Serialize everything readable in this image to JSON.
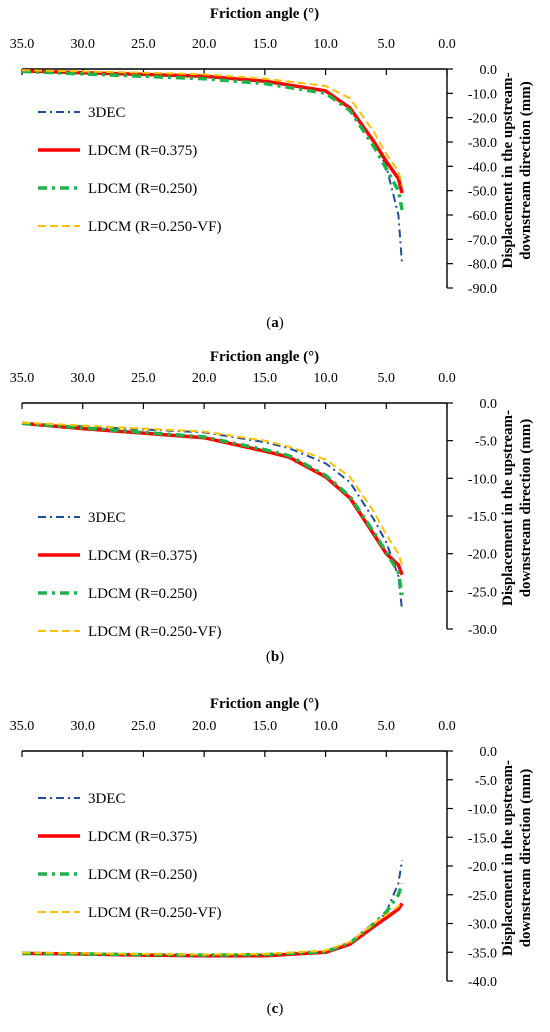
{
  "series_styles": [
    {
      "name": "3DEC",
      "color": "#1f4e9c",
      "dash": "8,4,2,4",
      "width": 2
    },
    {
      "name": "LDCM (R=0.375)",
      "color": "#ff0000",
      "dash": "",
      "width": 3.5
    },
    {
      "name": "LDCM (R=0.250)",
      "color": "#1db34a",
      "dash": "9,5,3,5",
      "width": 3.5
    },
    {
      "name": "LDCM (R=0.250-VF)",
      "color": "#ffc000",
      "dash": "8,4",
      "width": 2
    }
  ],
  "chart_data": [
    {
      "type": "line",
      "panel_label": "a",
      "xlabel": "Friction angle (°)",
      "ylabel": "Displacement in the upstream-downstream direction (mm)",
      "xlim": [
        35,
        0
      ],
      "ylim": [
        0,
        -90
      ],
      "x_axis_position": "top",
      "y_axis_position": "right",
      "x_ticks": [
        "35.0",
        "30.0",
        "25.0",
        "20.0",
        "15.0",
        "10.0",
        "5.0",
        "0.0"
      ],
      "y_ticks": [
        "0.0",
        "-10.0",
        "-20.0",
        "-30.0",
        "-40.0",
        "-50.0",
        "-60.0",
        "-70.0",
        "-80.0",
        "-90.0"
      ],
      "legend": "left",
      "series": [
        {
          "name": "3DEC",
          "x": [
            35,
            30,
            25,
            20,
            15,
            10,
            8,
            6,
            5,
            4,
            3.7
          ],
          "y": [
            -0.8,
            -1.5,
            -2.2,
            -3.0,
            -5.0,
            -9.0,
            -16,
            -30,
            -40,
            -60,
            -80.5
          ]
        },
        {
          "name": "LDCM (R=0.375)",
          "x": [
            35,
            30,
            25,
            20,
            15,
            10,
            8,
            6,
            5,
            4,
            3.7
          ],
          "y": [
            -0.8,
            -1.5,
            -2.2,
            -3.0,
            -5.0,
            -9.0,
            -16,
            -30,
            -38,
            -45,
            -51
          ]
        },
        {
          "name": "LDCM (R=0.250)",
          "x": [
            35,
            30,
            25,
            20,
            15,
            10,
            8,
            6,
            5,
            4,
            3.7
          ],
          "y": [
            -1.0,
            -2.0,
            -3.0,
            -4.0,
            -6.0,
            -10.0,
            -17,
            -32,
            -41,
            -50,
            -58
          ]
        },
        {
          "name": "LDCM (R=0.250-VF)",
          "x": [
            35,
            30,
            25,
            20,
            15,
            10,
            8,
            6,
            5,
            4,
            3.7
          ],
          "y": [
            -0.5,
            -1.0,
            -1.5,
            -2.2,
            -4.0,
            -7.0,
            -12,
            -26,
            -35,
            -42,
            -48
          ]
        }
      ]
    },
    {
      "type": "line",
      "panel_label": "b",
      "xlabel": "Friction angle (°)",
      "ylabel": "Displacement in the upstream-downstream direction (mm)",
      "xlim": [
        35,
        0
      ],
      "ylim": [
        0,
        -30
      ],
      "x_axis_position": "top",
      "y_axis_position": "right",
      "x_ticks": [
        "35.0",
        "30.0",
        "25.0",
        "20.0",
        "15.0",
        "10.0",
        "5.0",
        "0.0"
      ],
      "y_ticks": [
        "0.0",
        "-5.0",
        "-10.0",
        "-15.0",
        "-20.0",
        "-25.0",
        "-30.0"
      ],
      "legend": "left",
      "series": [
        {
          "name": "3DEC",
          "x": [
            35,
            30,
            25,
            20,
            15,
            13,
            10,
            8,
            6,
            5,
            4,
            3.7
          ],
          "y": [
            -2.7,
            -3.1,
            -3.5,
            -3.9,
            -5.2,
            -6.0,
            -8.0,
            -10.5,
            -15.5,
            -18.5,
            -23.0,
            -27.5
          ]
        },
        {
          "name": "LDCM (R=0.375)",
          "x": [
            35,
            30,
            25,
            20,
            15,
            13,
            10,
            8,
            6,
            5,
            4,
            3.7
          ],
          "y": [
            -2.7,
            -3.4,
            -4.0,
            -4.6,
            -6.4,
            -7.2,
            -9.8,
            -12.6,
            -17.5,
            -20.0,
            -21.5,
            -22.8
          ]
        },
        {
          "name": "LDCM (R=0.250)",
          "x": [
            35,
            30,
            25,
            20,
            15,
            13,
            10,
            8,
            6,
            5,
            4,
            3.7
          ],
          "y": [
            -2.7,
            -3.3,
            -3.9,
            -4.5,
            -6.2,
            -7.0,
            -9.6,
            -12.4,
            -17.2,
            -19.8,
            -22.5,
            -25.5
          ]
        },
        {
          "name": "LDCM (R=0.250-VF)",
          "x": [
            35,
            30,
            25,
            20,
            15,
            13,
            10,
            8,
            6,
            5,
            4,
            3.7
          ],
          "y": [
            -2.6,
            -3.0,
            -3.4,
            -3.8,
            -5.0,
            -5.8,
            -7.5,
            -9.8,
            -14.5,
            -17.5,
            -20.0,
            -21.5
          ]
        }
      ]
    },
    {
      "type": "line",
      "panel_label": "c",
      "xlabel": "Friction angle (°)",
      "ylabel": "Displacement in the upstream-downstream direction (mm)",
      "xlim": [
        35,
        0
      ],
      "ylim": [
        0,
        -40
      ],
      "x_axis_position": "top",
      "y_axis_position": "right",
      "x_ticks": [
        "35.0",
        "30.0",
        "25.0",
        "20.0",
        "15.0",
        "10.0",
        "5.0",
        "0.0"
      ],
      "y_ticks": [
        "0.0",
        "-5.0",
        "-10.0",
        "-15.0",
        "-20.0",
        "-25.0",
        "-30.0",
        "-35.0",
        "-40.0"
      ],
      "legend": "left",
      "series": [
        {
          "name": "3DEC",
          "x": [
            35,
            30,
            25,
            20,
            15,
            10,
            8,
            6,
            5,
            4,
            3.7
          ],
          "y": [
            -35.2,
            -35.3,
            -35.4,
            -35.5,
            -35.4,
            -35.0,
            -33.5,
            -30.5,
            -28.0,
            -23.0,
            -19.0
          ]
        },
        {
          "name": "LDCM (R=0.375)",
          "x": [
            35,
            30,
            25,
            20,
            15,
            10,
            8,
            6,
            5,
            4,
            3.7
          ],
          "y": [
            -35.2,
            -35.3,
            -35.5,
            -35.6,
            -35.6,
            -35.0,
            -33.6,
            -30.5,
            -29.0,
            -27.5,
            -26.5
          ]
        },
        {
          "name": "LDCM (R=0.250)",
          "x": [
            35,
            30,
            25,
            20,
            15,
            10,
            8,
            6,
            5,
            4,
            3.7
          ],
          "y": [
            -35.2,
            -35.3,
            -35.4,
            -35.5,
            -35.4,
            -34.9,
            -33.4,
            -30.0,
            -28.0,
            -25.0,
            -23.0
          ]
        },
        {
          "name": "LDCM (R=0.250-VF)",
          "x": [
            35,
            30,
            25,
            20,
            15,
            10,
            8,
            6,
            5,
            4,
            3.7
          ],
          "y": [
            -35.1,
            -35.2,
            -35.3,
            -35.4,
            -35.3,
            -34.7,
            -33.2,
            -30.0,
            -28.5,
            -27.0,
            -26.0
          ]
        }
      ]
    }
  ]
}
